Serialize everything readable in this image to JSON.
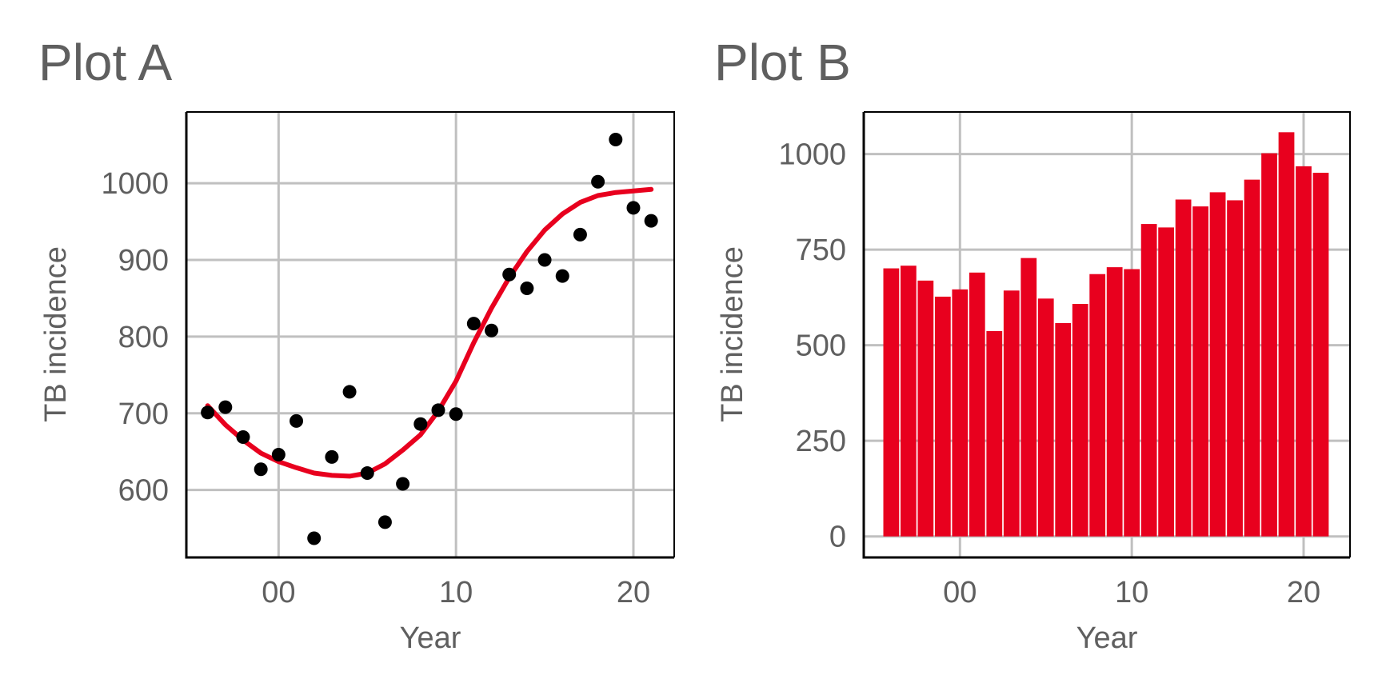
{
  "chart_data": [
    {
      "type": "scatter",
      "title": "Plot A",
      "xlabel": "Year",
      "ylabel": "TB incidence",
      "xlim": [
        -5.2,
        22.3
      ],
      "ylim": [
        512,
        1093
      ],
      "x_ticks": [
        0,
        10,
        20
      ],
      "x_tick_labels": [
        "00",
        "10",
        "20"
      ],
      "y_ticks": [
        600,
        700,
        800,
        900,
        1000
      ],
      "y_tick_labels": [
        "600",
        "700",
        "800",
        "900",
        "1000"
      ],
      "grid": true,
      "colors": {
        "points": "#000000",
        "fit": "#e8001e"
      },
      "points": {
        "x": [
          -4,
          -3,
          -2,
          -1,
          0,
          1,
          2,
          3,
          4,
          5,
          6,
          7,
          8,
          9,
          10,
          11,
          12,
          13,
          14,
          15,
          16,
          17,
          18,
          19,
          20,
          21
        ],
        "y": [
          701,
          708,
          669,
          627,
          646,
          690,
          537,
          643,
          728,
          622,
          558,
          608,
          686,
          704,
          699,
          817,
          808,
          881,
          863,
          900,
          879,
          933,
          1002,
          1057,
          968,
          951
        ]
      },
      "fit_line": {
        "x": [
          -4,
          -3,
          -2,
          -1,
          0,
          1,
          2,
          3,
          4,
          5,
          6,
          7,
          8,
          9,
          10,
          11,
          12,
          13,
          14,
          15,
          16,
          17,
          18,
          19,
          20,
          21
        ],
        "y": [
          710,
          685,
          665,
          648,
          637,
          629,
          622,
          619,
          618,
          622,
          634,
          652,
          672,
          703,
          742,
          792,
          837,
          877,
          911,
          939,
          960,
          975,
          984,
          988,
          990,
          992
        ]
      }
    },
    {
      "type": "bar",
      "title": "Plot B",
      "xlabel": "Year",
      "ylabel": "TB incidence",
      "xlim": [
        -5.6,
        22.7
      ],
      "ylim": [
        -55,
        1110
      ],
      "x_ticks": [
        0,
        10,
        20
      ],
      "x_tick_labels": [
        "00",
        "10",
        "20"
      ],
      "y_ticks": [
        0,
        250,
        500,
        750,
        1000
      ],
      "y_tick_labels": [
        "0",
        "250",
        "500",
        "750",
        "1000"
      ],
      "grid": true,
      "colors": {
        "bars": "#e8001e"
      },
      "categories": [
        -4,
        -3,
        -2,
        -1,
        0,
        1,
        2,
        3,
        4,
        5,
        6,
        7,
        8,
        9,
        10,
        11,
        12,
        13,
        14,
        15,
        16,
        17,
        18,
        19,
        20,
        21
      ],
      "values": [
        701,
        708,
        669,
        627,
        646,
        690,
        537,
        643,
        728,
        622,
        558,
        608,
        686,
        704,
        699,
        817,
        808,
        881,
        863,
        900,
        879,
        933,
        1002,
        1057,
        968,
        951
      ]
    }
  ]
}
